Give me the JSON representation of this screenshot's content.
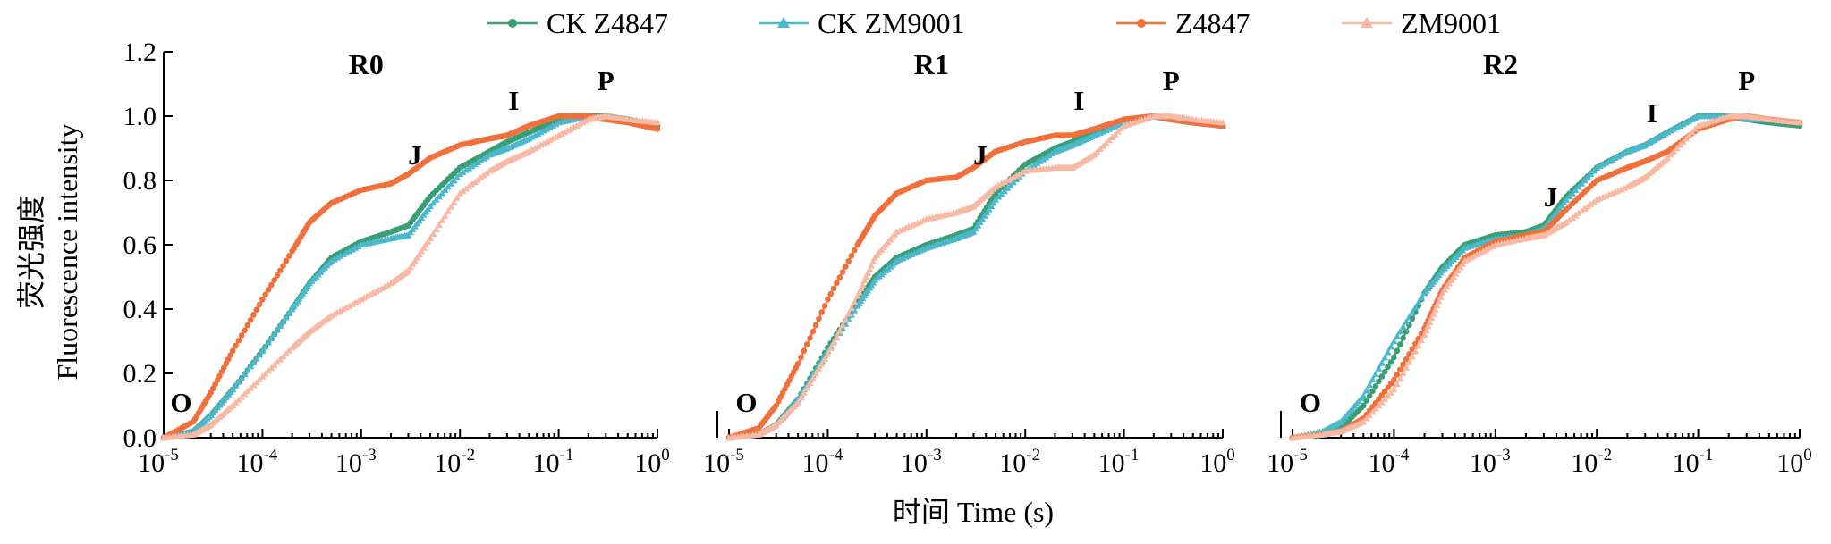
{
  "chart_data": {
    "type": "line",
    "ylabel_cn": "荧光强度",
    "ylabel_en": "Fluorescence intensity",
    "xlabel": "时间 Time (s)",
    "xscale": "log",
    "xlim": [
      1e-05,
      1
    ],
    "ylim": [
      0,
      1.2
    ],
    "yticks": [
      "0.0",
      "0.2",
      "0.4",
      "0.6",
      "0.8",
      "1.0",
      "1.2"
    ],
    "xticks": [
      {
        "base": "10",
        "exp": "-5"
      },
      {
        "base": "10",
        "exp": "-4"
      },
      {
        "base": "10",
        "exp": "-3"
      },
      {
        "base": "10",
        "exp": "-2"
      },
      {
        "base": "10",
        "exp": "-1"
      },
      {
        "base": "10",
        "exp": "0"
      }
    ],
    "legend_position": "top",
    "legend": [
      {
        "name": "CK Z4847",
        "color": "#3a9e74",
        "marker": "circle"
      },
      {
        "name": "CK ZM9001",
        "color": "#4cb8cc",
        "marker": "triangle"
      },
      {
        "name": "Z4847",
        "color": "#f26f3a",
        "marker": "circle"
      },
      {
        "name": "ZM9001",
        "color": "#f7b8a4",
        "marker": "triangle"
      }
    ],
    "x": [
      1e-05,
      2e-05,
      3e-05,
      5e-05,
      0.0001,
      0.0002,
      0.0003,
      0.0005,
      0.001,
      0.002,
      0.003,
      0.005,
      0.01,
      0.02,
      0.03,
      0.05,
      0.1,
      0.2,
      0.3,
      0.5,
      1
    ],
    "panels": [
      {
        "title": "R0",
        "phase_labels": [
          {
            "text": "O",
            "x": 1.5e-05,
            "y": 0.08
          },
          {
            "text": "J",
            "x": 0.0035,
            "y": 0.85
          },
          {
            "text": "I",
            "x": 0.035,
            "y": 1.02
          },
          {
            "text": "P",
            "x": 0.3,
            "y": 1.08
          }
        ],
        "series": [
          {
            "name": "CK Z4847",
            "values": [
              0.0,
              0.02,
              0.07,
              0.15,
              0.27,
              0.4,
              0.48,
              0.56,
              0.61,
              0.64,
              0.66,
              0.75,
              0.84,
              0.89,
              0.92,
              0.95,
              0.99,
              1.0,
              1.0,
              0.99,
              0.97
            ]
          },
          {
            "name": "CK ZM9001",
            "values": [
              0.0,
              0.02,
              0.07,
              0.15,
              0.27,
              0.4,
              0.48,
              0.55,
              0.6,
              0.62,
              0.63,
              0.72,
              0.82,
              0.88,
              0.9,
              0.93,
              0.98,
              1.0,
              0.99,
              0.99,
              0.98
            ]
          },
          {
            "name": "Z4847",
            "values": [
              0.0,
              0.05,
              0.14,
              0.27,
              0.43,
              0.58,
              0.67,
              0.73,
              0.77,
              0.79,
              0.82,
              0.87,
              0.91,
              0.93,
              0.94,
              0.97,
              1.0,
              1.0,
              0.99,
              0.98,
              0.96
            ]
          },
          {
            "name": "ZM9001",
            "values": [
              0.0,
              0.01,
              0.04,
              0.1,
              0.19,
              0.28,
              0.33,
              0.38,
              0.43,
              0.48,
              0.52,
              0.62,
              0.76,
              0.83,
              0.86,
              0.89,
              0.94,
              0.99,
              1.0,
              0.99,
              0.98
            ]
          }
        ]
      },
      {
        "title": "R1",
        "phase_labels": [
          {
            "text": "O",
            "x": 1.5e-05,
            "y": 0.08
          },
          {
            "text": "J",
            "x": 0.0035,
            "y": 0.85
          },
          {
            "text": "I",
            "x": 0.035,
            "y": 1.02
          },
          {
            "text": "P",
            "x": 0.3,
            "y": 1.08
          }
        ],
        "series": [
          {
            "name": "CK Z4847",
            "values": [
              0.0,
              0.01,
              0.04,
              0.12,
              0.28,
              0.42,
              0.5,
              0.56,
              0.6,
              0.63,
              0.65,
              0.76,
              0.85,
              0.9,
              0.92,
              0.95,
              0.99,
              1.0,
              0.99,
              0.98,
              0.97
            ]
          },
          {
            "name": "CK ZM9001",
            "values": [
              0.0,
              0.01,
              0.04,
              0.12,
              0.27,
              0.41,
              0.49,
              0.55,
              0.59,
              0.62,
              0.64,
              0.74,
              0.83,
              0.89,
              0.91,
              0.94,
              0.98,
              1.0,
              0.99,
              0.98,
              0.97
            ]
          },
          {
            "name": "Z4847",
            "values": [
              0.0,
              0.03,
              0.1,
              0.23,
              0.43,
              0.6,
              0.69,
              0.76,
              0.8,
              0.81,
              0.84,
              0.89,
              0.92,
              0.94,
              0.94,
              0.96,
              0.99,
              1.0,
              0.99,
              0.98,
              0.97
            ]
          },
          {
            "name": "ZM9001",
            "values": [
              0.0,
              0.01,
              0.04,
              0.11,
              0.26,
              0.44,
              0.56,
              0.64,
              0.68,
              0.7,
              0.72,
              0.78,
              0.83,
              0.84,
              0.84,
              0.88,
              0.97,
              1.0,
              1.0,
              0.99,
              0.98
            ]
          }
        ]
      },
      {
        "title": "R2",
        "phase_labels": [
          {
            "text": "O",
            "x": 1.5e-05,
            "y": 0.08
          },
          {
            "text": "J",
            "x": 0.0035,
            "y": 0.72
          },
          {
            "text": "I",
            "x": 0.035,
            "y": 0.98
          },
          {
            "text": "P",
            "x": 0.3,
            "y": 1.08
          }
        ],
        "series": [
          {
            "name": "CK Z4847",
            "values": [
              0.0,
              0.01,
              0.03,
              0.1,
              0.25,
              0.45,
              0.53,
              0.6,
              0.63,
              0.64,
              0.66,
              0.75,
              0.84,
              0.89,
              0.91,
              0.95,
              1.0,
              1.0,
              0.99,
              0.98,
              0.97
            ]
          },
          {
            "name": "CK ZM9001",
            "values": [
              0.0,
              0.02,
              0.05,
              0.13,
              0.3,
              0.45,
              0.52,
              0.59,
              0.62,
              0.63,
              0.65,
              0.74,
              0.84,
              0.89,
              0.91,
              0.95,
              1.0,
              1.0,
              0.99,
              0.99,
              0.98
            ]
          },
          {
            "name": "Z4847",
            "values": [
              0.0,
              0.01,
              0.02,
              0.06,
              0.18,
              0.34,
              0.46,
              0.56,
              0.61,
              0.63,
              0.64,
              0.71,
              0.8,
              0.84,
              0.86,
              0.89,
              0.96,
              0.99,
              1.0,
              0.99,
              0.98
            ]
          },
          {
            "name": "ZM9001",
            "values": [
              0.0,
              0.01,
              0.02,
              0.05,
              0.15,
              0.32,
              0.45,
              0.55,
              0.6,
              0.62,
              0.63,
              0.67,
              0.74,
              0.78,
              0.81,
              0.87,
              0.97,
              1.0,
              1.0,
              0.99,
              0.98
            ]
          }
        ]
      }
    ]
  }
}
